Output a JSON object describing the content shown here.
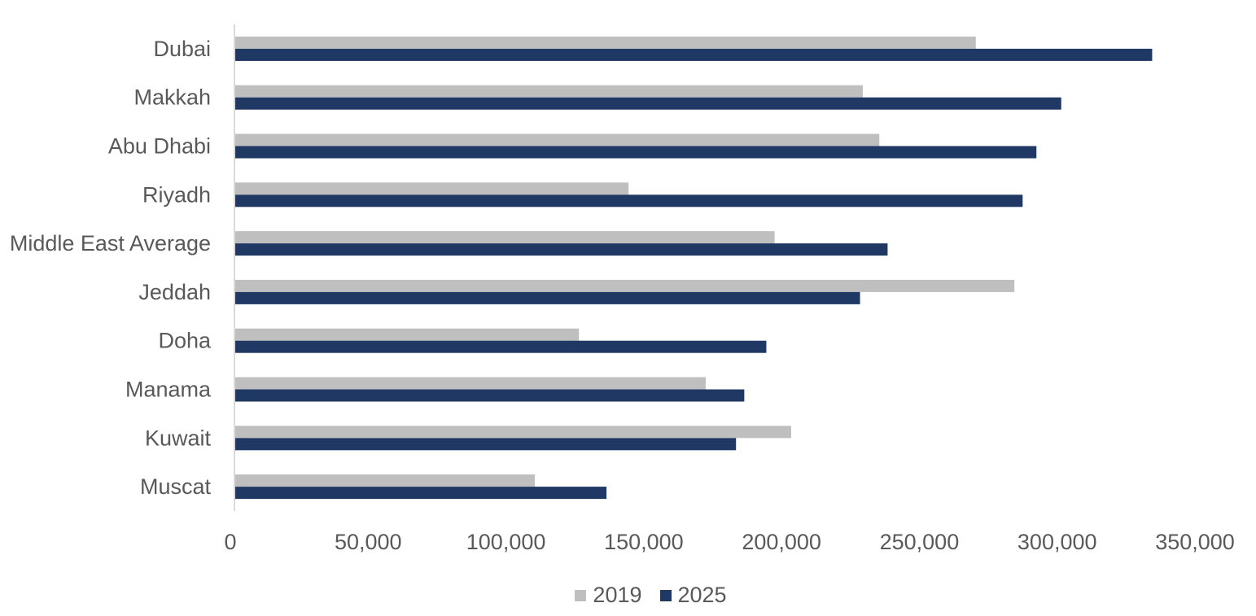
{
  "chart_data": {
    "type": "bar",
    "orientation": "horizontal",
    "categories": [
      "Dubai",
      "Makkah",
      "Abu Dhabi",
      "Riyadh",
      "Middle East Average",
      "Jeddah",
      "Doha",
      "Manama",
      "Kuwait",
      "Muscat"
    ],
    "series": [
      {
        "name": "2019",
        "color": "#BFBFBF",
        "values": [
          269000,
          228000,
          234000,
          143000,
          196000,
          283000,
          125000,
          171000,
          202000,
          109000
        ]
      },
      {
        "name": "2025",
        "color": "#1F3864",
        "values": [
          333000,
          300000,
          291000,
          286000,
          237000,
          227000,
          193000,
          185000,
          182000,
          135000
        ]
      }
    ],
    "xlim": [
      0,
      350000
    ],
    "x_ticks": [
      "0",
      "50,000",
      "100,000",
      "150,000",
      "200,000",
      "250,000",
      "300,000",
      "350,000"
    ],
    "grid": false,
    "legend_position": "bottom",
    "title": "",
    "xlabel": "",
    "ylabel": ""
  }
}
